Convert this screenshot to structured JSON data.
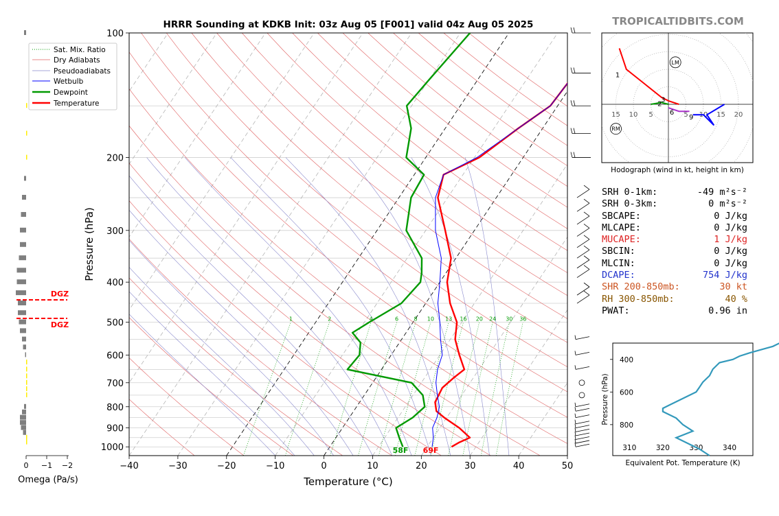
{
  "header": {
    "title": "HRRR Sounding at KDKB Init: 03z Aug 05 [F001] valid 04z Aug 05 2025",
    "brand": "TROPICALTIDBITS.COM"
  },
  "skewt": {
    "xlabel": "Temperature (°C)",
    "ylabel": "Pressure (hPa)",
    "x_ticks": [
      "−40",
      "−30",
      "−20",
      "−10",
      "0",
      "10",
      "20",
      "30",
      "40",
      "50"
    ],
    "p_ticks": [
      "100",
      "200",
      "300",
      "400",
      "500",
      "600",
      "700",
      "800",
      "900",
      "1000"
    ],
    "surface_temp_label": "69F",
    "surface_dew_label": "58F",
    "mixing_ratio_labels": [
      "1",
      "2",
      "4",
      "6",
      "8",
      "10",
      "13",
      "16",
      "20",
      "24",
      "30",
      "36"
    ],
    "legend": [
      "Sat. Mix. Ratio",
      "Dry Adiabats",
      "Pseudoadiabats",
      "Wetbulb",
      "Dewpoint",
      "Temperature"
    ],
    "colors": {
      "temperature": "#ff0000",
      "dewpoint": "#009900",
      "wetbulb": "#0000ff",
      "mixing": "#009900",
      "dry": "#e06060",
      "moist": "#5555cc"
    }
  },
  "omega": {
    "xlabel": "Omega (Pa/s)",
    "ticks": [
      "0",
      "−1",
      "−2"
    ],
    "dgz_label_top": "DGZ",
    "dgz_label_bottom": "DGZ"
  },
  "hodograph": {
    "caption": "Hodograph (wind in kt, height in km)",
    "ring_labels": [
      "15",
      "10",
      "5",
      "5",
      "10",
      "15",
      "20"
    ],
    "height_labels": [
      "1",
      "2",
      "3",
      "6",
      "9"
    ],
    "lm_label": "LM",
    "rm_label": "RM"
  },
  "indices": [
    {
      "label": "SRH 0-1km:",
      "value": "-49",
      "unit": "m²s⁻²",
      "color": "#000000"
    },
    {
      "label": "SRH 0-3km:",
      "value": "0",
      "unit": "m²s⁻²",
      "color": "#000000"
    },
    {
      "label": "SBCAPE:",
      "value": "0 J/kg",
      "unit": "",
      "color": "#000000"
    },
    {
      "label": "MLCAPE:",
      "value": "0 J/kg",
      "unit": "",
      "color": "#000000"
    },
    {
      "label": "MUCAPE:",
      "value": "1 J/kg",
      "unit": "",
      "color": "#dd2222"
    },
    {
      "label": "SBCIN:",
      "value": "0 J/kg",
      "unit": "",
      "color": "#000000"
    },
    {
      "label": "MLCIN:",
      "value": "0 J/kg",
      "unit": "",
      "color": "#000000"
    },
    {
      "label": "DCAPE:",
      "value": "754 J/kg",
      "unit": "",
      "color": "#2233cc"
    },
    {
      "label": "SHR 200-850mb:",
      "value": "30 kt",
      "unit": "",
      "color": "#cc5522"
    },
    {
      "label": "RH 300-850mb:",
      "value": "40 %",
      "unit": "",
      "color": "#885500"
    },
    {
      "label": "PWAT:",
      "value": "0.96 in",
      "unit": "",
      "color": "#000000"
    }
  ],
  "theta_e_panel": {
    "xlabel": "Equivalent Pot. Temperature (K)",
    "ylabel": "Pressure (hPa)",
    "x_ticks": [
      "310",
      "320",
      "330",
      "340"
    ],
    "y_ticks": [
      "400",
      "600",
      "800"
    ]
  },
  "chart_data": [
    {
      "type": "line",
      "name": "skew-t",
      "x_unit": "°C",
      "y_unit": "hPa",
      "xlim": [
        -40,
        50
      ],
      "ylim": [
        1050,
        100
      ],
      "y_scale": "log",
      "series": [
        {
          "name": "Temperature",
          "points": [
            [
              100,
              1
            ],
            [
              130,
              -1
            ],
            [
              150,
              -1.5
            ],
            [
              170,
              -5
            ],
            [
              200,
              -9
            ],
            [
              220,
              -14
            ],
            [
              250,
              -12
            ],
            [
              300,
              -6
            ],
            [
              350,
              -1
            ],
            [
              400,
              1.5
            ],
            [
              450,
              5
            ],
            [
              500,
              9
            ],
            [
              550,
              11
            ],
            [
              600,
              14
            ],
            [
              650,
              17
            ],
            [
              680,
              16
            ],
            [
              720,
              15
            ],
            [
              780,
              15.5
            ],
            [
              820,
              17
            ],
            [
              850,
              19.5
            ],
            [
              900,
              24
            ],
            [
              950,
              27.5
            ],
            [
              975,
              26
            ],
            [
              1000,
              25
            ]
          ]
        },
        {
          "name": "Dewpoint",
          "points": [
            [
              100,
              -28
            ],
            [
              130,
              -30
            ],
            [
              150,
              -31
            ],
            [
              170,
              -27
            ],
            [
              200,
              -24
            ],
            [
              220,
              -18
            ],
            [
              250,
              -17.5
            ],
            [
              300,
              -14
            ],
            [
              350,
              -7
            ],
            [
              380,
              -5
            ],
            [
              400,
              -4
            ],
            [
              450,
              -5
            ],
            [
              500,
              -9
            ],
            [
              530,
              -11
            ],
            [
              560,
              -8
            ],
            [
              600,
              -6.5
            ],
            [
              650,
              -7
            ],
            [
              700,
              8
            ],
            [
              750,
              12
            ],
            [
              800,
              14
            ],
            [
              850,
              13
            ],
            [
              900,
              11
            ],
            [
              950,
              13
            ],
            [
              1000,
              15
            ]
          ]
        },
        {
          "name": "Wetbulb",
          "points": [
            [
              100,
              1
            ],
            [
              130,
              -1
            ],
            [
              150,
              -1.5
            ],
            [
              170,
              -5
            ],
            [
              200,
              -9.5
            ],
            [
              220,
              -14
            ],
            [
              250,
              -12.5
            ],
            [
              300,
              -8
            ],
            [
              350,
              -3
            ],
            [
              400,
              0
            ],
            [
              450,
              2.5
            ],
            [
              500,
              5.5
            ],
            [
              550,
              8
            ],
            [
              600,
              10.5
            ],
            [
              650,
              11.5
            ],
            [
              700,
              13
            ],
            [
              750,
              15
            ],
            [
              800,
              17
            ],
            [
              850,
              18
            ],
            [
              900,
              18.5
            ],
            [
              950,
              20
            ],
            [
              1000,
              21
            ]
          ]
        }
      ]
    },
    {
      "type": "bar",
      "name": "omega",
      "x_unit": "Pa/s",
      "xlim": [
        0.1,
        -2
      ],
      "bars": [
        {
          "p": 100,
          "v": -0.1
        },
        {
          "p": 150,
          "v": 0.02
        },
        {
          "p": 175,
          "v": 0.02
        },
        {
          "p": 200,
          "v": 0.02
        },
        {
          "p": 225,
          "v": -0.1
        },
        {
          "p": 250,
          "v": -0.2
        },
        {
          "p": 275,
          "v": -0.25
        },
        {
          "p": 300,
          "v": -0.3
        },
        {
          "p": 325,
          "v": -0.3
        },
        {
          "p": 350,
          "v": -0.35
        },
        {
          "p": 375,
          "v": -0.45
        },
        {
          "p": 400,
          "v": -0.45
        },
        {
          "p": 425,
          "v": -0.5
        },
        {
          "p": 450,
          "v": -0.4
        },
        {
          "p": 475,
          "v": -0.4
        },
        {
          "p": 500,
          "v": -0.35
        },
        {
          "p": 525,
          "v": -0.3
        },
        {
          "p": 550,
          "v": -0.2
        },
        {
          "p": 575,
          "v": -0.15
        },
        {
          "p": 600,
          "v": -0.05
        },
        {
          "p": 625,
          "v": 0.02
        },
        {
          "p": 650,
          "v": 0.02
        },
        {
          "p": 675,
          "v": 0.02
        },
        {
          "p": 700,
          "v": 0.02
        },
        {
          "p": 725,
          "v": 0.02
        },
        {
          "p": 750,
          "v": 0.02
        },
        {
          "p": 800,
          "v": -0.1
        },
        {
          "p": 825,
          "v": -0.2
        },
        {
          "p": 850,
          "v": -0.3
        },
        {
          "p": 875,
          "v": -0.3
        },
        {
          "p": 900,
          "v": -0.25
        },
        {
          "p": 925,
          "v": -0.15
        },
        {
          "p": 950,
          "v": 0.02
        },
        {
          "p": 975,
          "v": 0.02
        }
      ],
      "dgz_p": [
        440,
        490
      ]
    },
    {
      "type": "line",
      "name": "hodograph",
      "x_unit": "kt",
      "y_unit": "kt",
      "xlim": [
        -17,
        22
      ],
      "ylim": [
        -10,
        20
      ],
      "segments": [
        {
          "color": "#ff0000",
          "points": [
            [
              -14,
              16
            ],
            [
              -12,
              10
            ],
            [
              -7,
              6
            ],
            [
              -2,
              2
            ],
            [
              0,
              1
            ],
            [
              3,
              0
            ]
          ]
        },
        {
          "color": "#009900",
          "points": [
            [
              -5,
              0
            ],
            [
              -2,
              0.5
            ],
            [
              0,
              0
            ]
          ]
        },
        {
          "color": "#aa33cc",
          "points": [
            [
              0,
              -1
            ],
            [
              3,
              -2
            ],
            [
              6,
              -2
            ]
          ]
        },
        {
          "color": "#0000ff",
          "points": [
            [
              7,
              -3
            ],
            [
              10,
              -3
            ],
            [
              13,
              -6
            ],
            [
              11,
              -3
            ],
            [
              16,
              0
            ]
          ]
        }
      ],
      "lm": [
        2,
        12
      ],
      "rm": [
        -15,
        -7
      ]
    },
    {
      "type": "line",
      "name": "theta-e",
      "x_unit": "K",
      "y_unit": "hPa",
      "xlim": [
        305,
        347
      ],
      "ylim": [
        990,
        300
      ],
      "series": [
        {
          "name": "theta-e",
          "points": [
            [
              327,
              300
            ],
            [
              325,
              320
            ],
            [
              318,
              360
            ],
            [
              315,
              380
            ],
            [
              313,
              400
            ],
            [
              309,
              420
            ],
            [
              307,
              460
            ],
            [
              306,
              500
            ],
            [
              304,
              540
            ],
            [
              303,
              570
            ],
            [
              302,
              600
            ],
            [
              298,
              640
            ],
            [
              294,
              680
            ],
            [
              292,
              700
            ],
            [
              292,
              720
            ],
            [
              296,
              760
            ],
            [
              298,
              800
            ],
            [
              301,
              840
            ],
            [
              296,
              880
            ],
            [
              300,
              920
            ],
            [
              303,
              950
            ],
            [
              306,
              990
            ]
          ]
        }
      ]
    }
  ]
}
